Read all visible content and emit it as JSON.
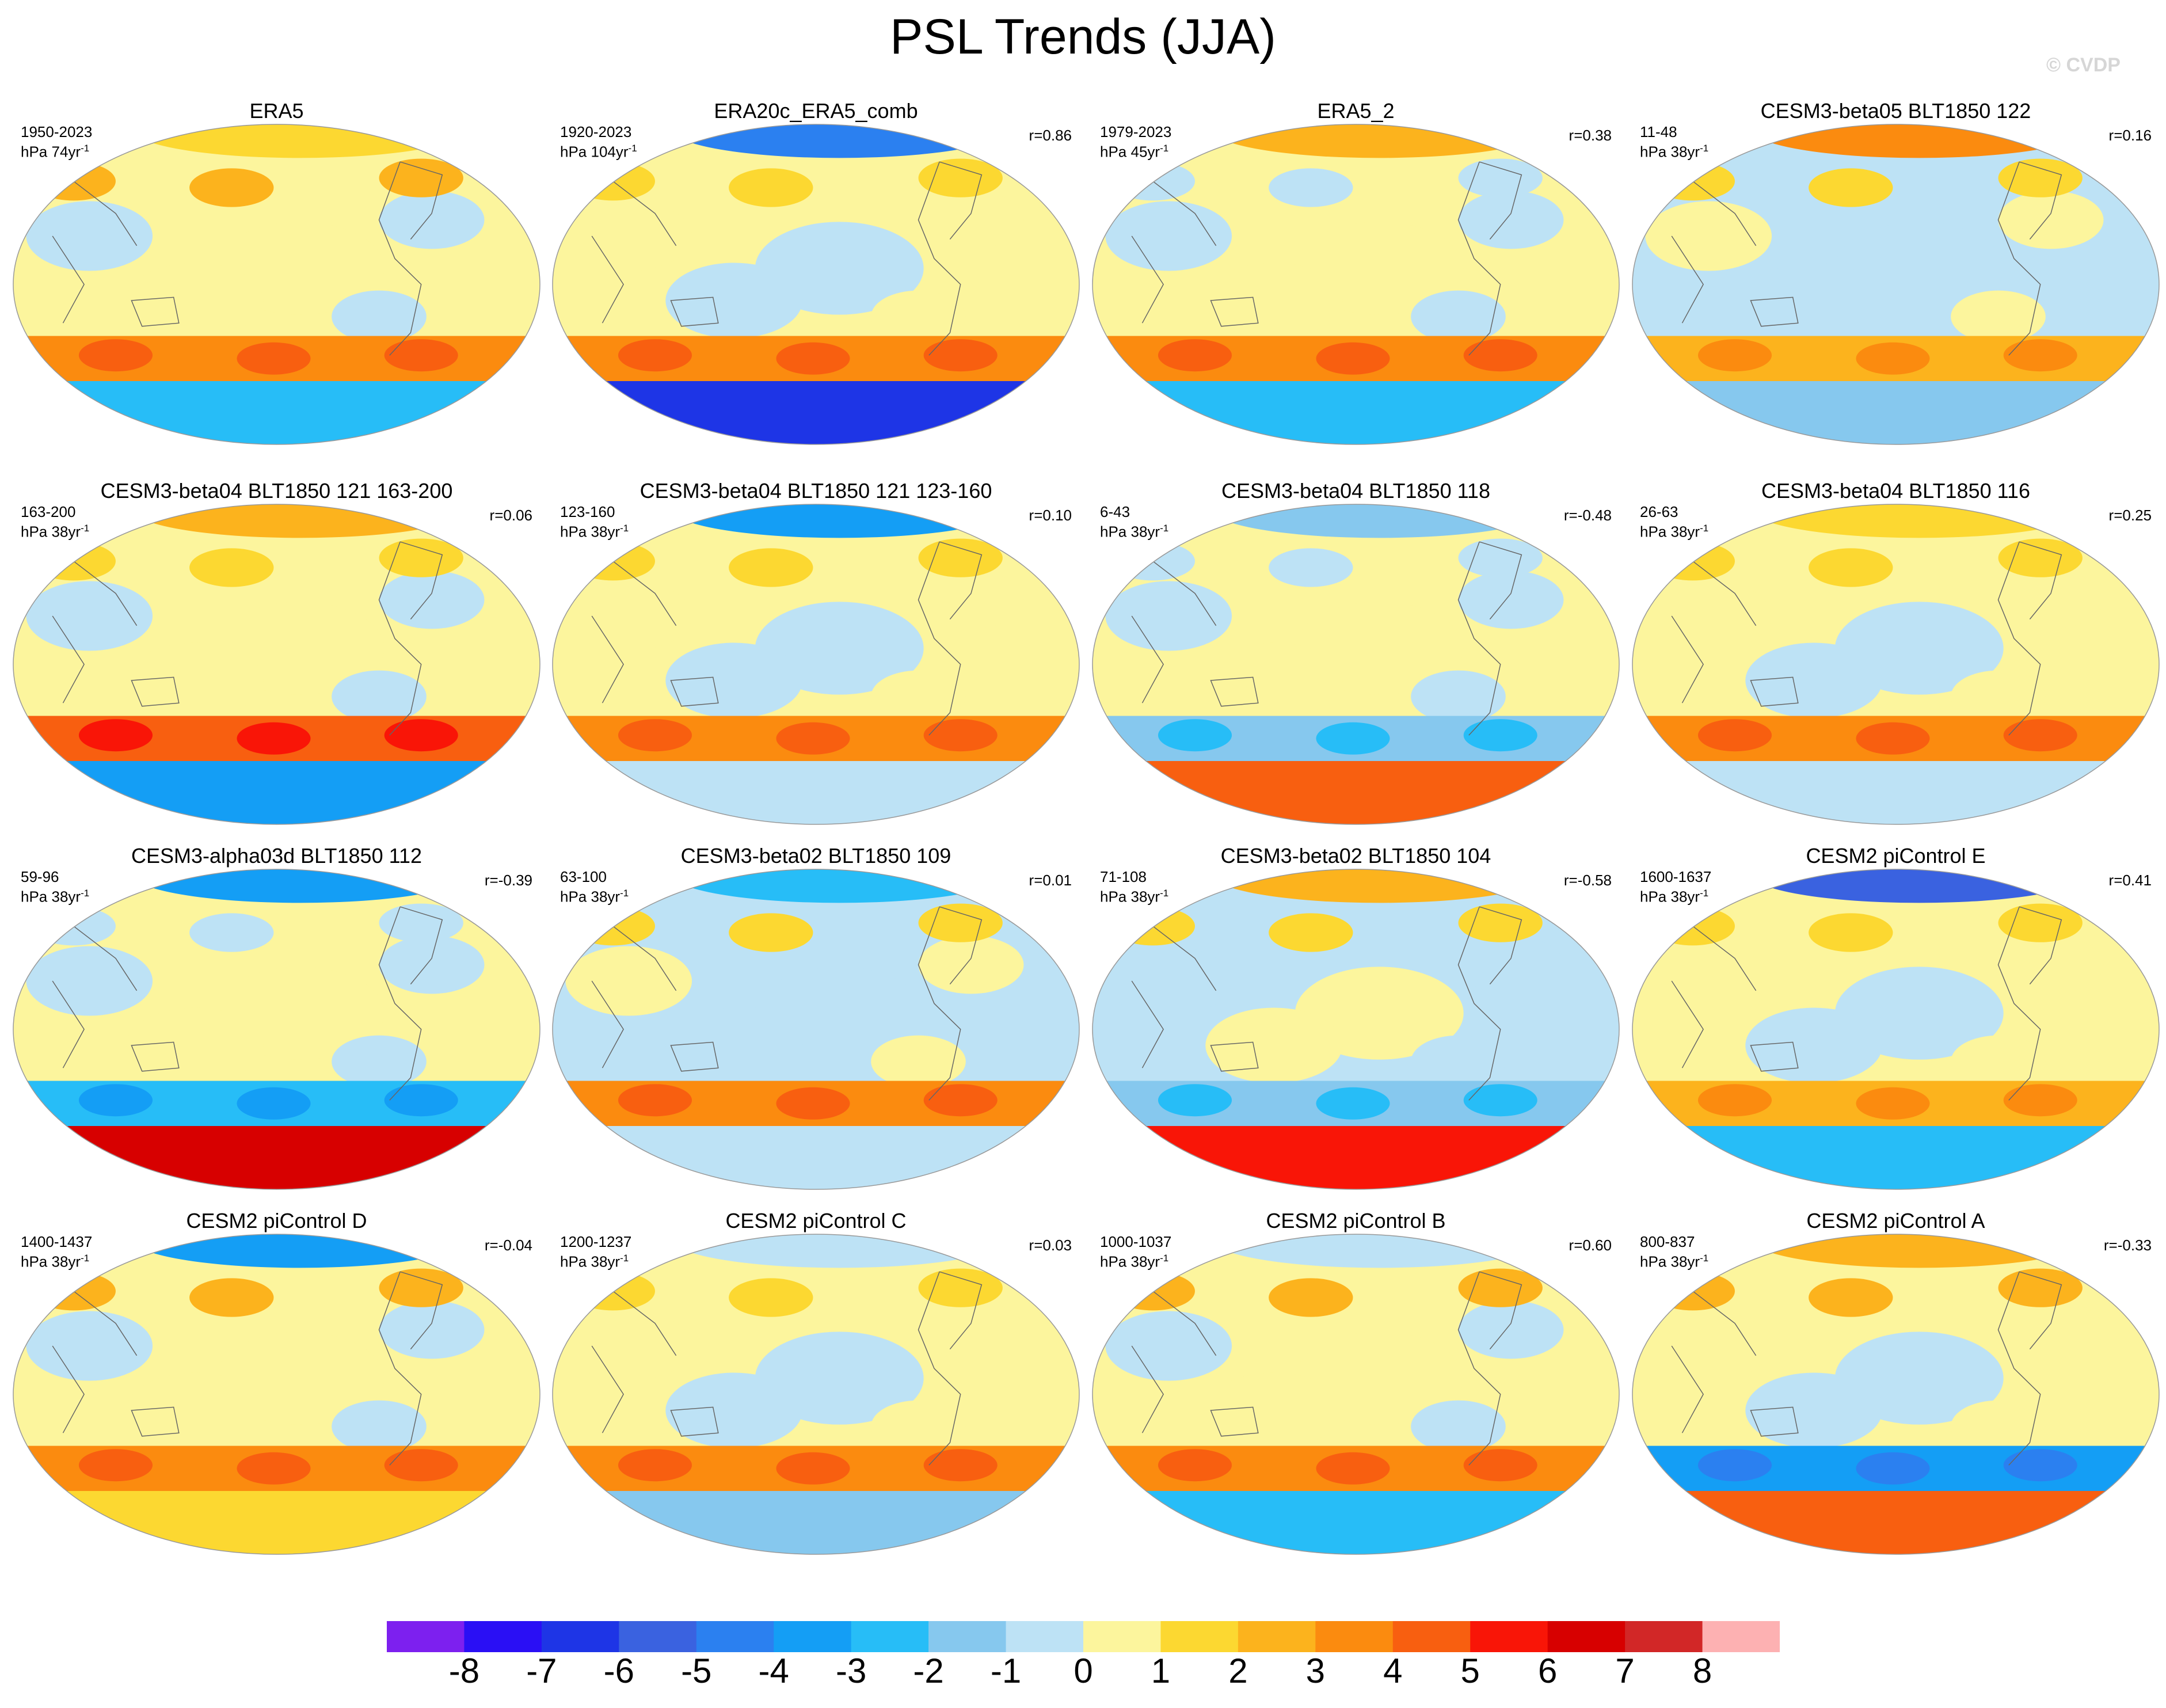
{
  "title": "PSL Trends (JJA)",
  "watermark": "© CVDP",
  "chart_data": {
    "type": "heatmap",
    "projection": "Robinson-like global maps",
    "variable": "PSL trends",
    "season": "JJA",
    "panels": [
      {
        "title": "ERA5",
        "period": "1950-2023",
        "units": "hPa 74yr",
        "units_exp": "-1",
        "r": "",
        "pattern": [
          [
            "sh-band",
            -2.5
          ],
          [
            "sh-ring",
            3
          ],
          [
            "nh-midlat",
            2
          ],
          [
            "tropics",
            0.5
          ],
          [
            "arctic",
            1
          ]
        ]
      },
      {
        "title": "ERA20c_ERA5_comb",
        "period": "1920-2023",
        "units": "hPa 104yr",
        "units_exp": "-1",
        "r": "r=0.86",
        "pattern": [
          [
            "sh-band",
            -7
          ],
          [
            "sh-ring",
            3
          ],
          [
            "arctic",
            -5
          ],
          [
            "tropics",
            0.5
          ],
          [
            "nh-midlat",
            1
          ]
        ]
      },
      {
        "title": "ERA5_2",
        "period": "1979-2023",
        "units": "hPa 45yr",
        "units_exp": "-1",
        "r": "r=0.38",
        "pattern": [
          [
            "sh-band",
            -3
          ],
          [
            "sh-ring",
            3
          ],
          [
            "arctic",
            2
          ],
          [
            "tropics",
            0.5
          ],
          [
            "nh-midlat",
            -1
          ]
        ]
      },
      {
        "title": "CESM3-beta05 BLT1850 122",
        "period": "11-48",
        "units": "hPa 38yr",
        "units_exp": "-1",
        "r": "r=0.16",
        "pattern": [
          [
            "sh-band",
            -2
          ],
          [
            "sh-ring",
            2
          ],
          [
            "arctic",
            3
          ],
          [
            "tropics",
            -0.5
          ],
          [
            "nh-midlat",
            1
          ]
        ]
      },
      {
        "title": "CESM3-beta04 BLT1850 121 163-200",
        "period": "163-200",
        "units": "hPa 38yr",
        "units_exp": "-1",
        "r": "r=0.06",
        "pattern": [
          [
            "sh-band",
            -4
          ],
          [
            "sh-ring",
            4
          ],
          [
            "arctic",
            2
          ],
          [
            "tropics",
            0.5
          ],
          [
            "nh-midlat",
            1
          ]
        ]
      },
      {
        "title": "CESM3-beta04 BLT1850 121 123-160",
        "period": "123-160",
        "units": "hPa 38yr",
        "units_exp": "-1",
        "r": "r=0.10",
        "pattern": [
          [
            "sh-band",
            -1
          ],
          [
            "sh-ring",
            3
          ],
          [
            "arctic",
            -4
          ],
          [
            "tropics",
            0.5
          ],
          [
            "nh-midlat",
            1
          ]
        ]
      },
      {
        "title": "CESM3-beta04 BLT1850 118",
        "period": "6-43",
        "units": "hPa 38yr",
        "units_exp": "-1",
        "r": "r=-0.48",
        "pattern": [
          [
            "sh-band",
            4
          ],
          [
            "sh-ring",
            -2
          ],
          [
            "arctic",
            -2
          ],
          [
            "tropics",
            0.5
          ],
          [
            "nh-midlat",
            -0.5
          ]
        ]
      },
      {
        "title": "CESM3-beta04 BLT1850 116",
        "period": "26-63",
        "units": "hPa 38yr",
        "units_exp": "-1",
        "r": "r=0.25",
        "pattern": [
          [
            "sh-band",
            -1
          ],
          [
            "sh-ring",
            3
          ],
          [
            "arctic",
            1
          ],
          [
            "tropics",
            0.5
          ],
          [
            "nh-midlat",
            1
          ]
        ]
      },
      {
        "title": "CESM3-alpha03d BLT1850 112",
        "period": "59-96",
        "units": "hPa 38yr",
        "units_exp": "-1",
        "r": "r=-0.39",
        "pattern": [
          [
            "sh-band",
            6
          ],
          [
            "sh-ring",
            -3
          ],
          [
            "arctic",
            -4
          ],
          [
            "tropics",
            0.5
          ],
          [
            "nh-midlat",
            -0.5
          ]
        ]
      },
      {
        "title": "CESM3-beta02 BLT1850 109",
        "period": "63-100",
        "units": "hPa 38yr",
        "units_exp": "-1",
        "r": "r=0.01",
        "pattern": [
          [
            "sh-band",
            -1
          ],
          [
            "sh-ring",
            3
          ],
          [
            "arctic",
            -3
          ],
          [
            "tropics",
            -0.5
          ],
          [
            "nh-midlat",
            1
          ]
        ]
      },
      {
        "title": "CESM3-beta02 BLT1850 104",
        "period": "71-108",
        "units": "hPa 38yr",
        "units_exp": "-1",
        "r": "r=-0.58",
        "pattern": [
          [
            "sh-band",
            5
          ],
          [
            "sh-ring",
            -2
          ],
          [
            "arctic",
            2
          ],
          [
            "tropics",
            -0.5
          ],
          [
            "nh-midlat",
            1
          ]
        ]
      },
      {
        "title": "CESM2 piControl E",
        "period": "1600-1637",
        "units": "hPa 38yr",
        "units_exp": "-1",
        "r": "r=0.41",
        "pattern": [
          [
            "sh-band",
            -3
          ],
          [
            "sh-ring",
            2
          ],
          [
            "arctic",
            -6
          ],
          [
            "tropics",
            0.5
          ],
          [
            "nh-midlat",
            1
          ]
        ]
      },
      {
        "title": "CESM2 piControl D",
        "period": "1400-1437",
        "units": "hPa 38yr",
        "units_exp": "-1",
        "r": "r=-0.04",
        "pattern": [
          [
            "sh-band",
            1
          ],
          [
            "sh-ring",
            3
          ],
          [
            "arctic",
            -4
          ],
          [
            "tropics",
            0.5
          ],
          [
            "nh-midlat",
            2
          ]
        ]
      },
      {
        "title": "CESM2 piControl C",
        "period": "1200-1237",
        "units": "hPa 38yr",
        "units_exp": "-1",
        "r": "r=0.03",
        "pattern": [
          [
            "sh-band",
            -2
          ],
          [
            "sh-ring",
            3
          ],
          [
            "arctic",
            -1
          ],
          [
            "tropics",
            0.5
          ],
          [
            "nh-midlat",
            1
          ]
        ]
      },
      {
        "title": "CESM2 piControl B",
        "period": "1000-1037",
        "units": "hPa 38yr",
        "units_exp": "-1",
        "r": "r=0.60",
        "pattern": [
          [
            "sh-band",
            -3
          ],
          [
            "sh-ring",
            3
          ],
          [
            "arctic",
            -1
          ],
          [
            "tropics",
            0.5
          ],
          [
            "nh-midlat",
            2
          ]
        ]
      },
      {
        "title": "CESM2 piControl A",
        "period": "800-837",
        "units": "hPa 38yr",
        "units_exp": "-1",
        "r": "r=-0.33",
        "pattern": [
          [
            "sh-band",
            4
          ],
          [
            "sh-ring",
            -4
          ],
          [
            "arctic",
            2
          ],
          [
            "tropics",
            0.5
          ],
          [
            "nh-midlat",
            2
          ]
        ]
      }
    ],
    "colorbar": {
      "labels": [
        "-8",
        "-7",
        "-6",
        "-5",
        "-4",
        "-3",
        "-2",
        "-1",
        "0",
        "1",
        "2",
        "3",
        "4",
        "5",
        "6",
        "7",
        "8"
      ],
      "colors": [
        "#7d20ef",
        "#2a0ff5",
        "#1e35e6",
        "#3a62e0",
        "#2b80f0",
        "#149ef5",
        "#27bdf7",
        "#86c8ee",
        "#bde2f5",
        "#fcf59d",
        "#fcd831",
        "#fcb31d",
        "#fb8b0f",
        "#f85f10",
        "#f91507",
        "#d70000",
        "#d22727",
        "#fdb1b2"
      ]
    }
  }
}
